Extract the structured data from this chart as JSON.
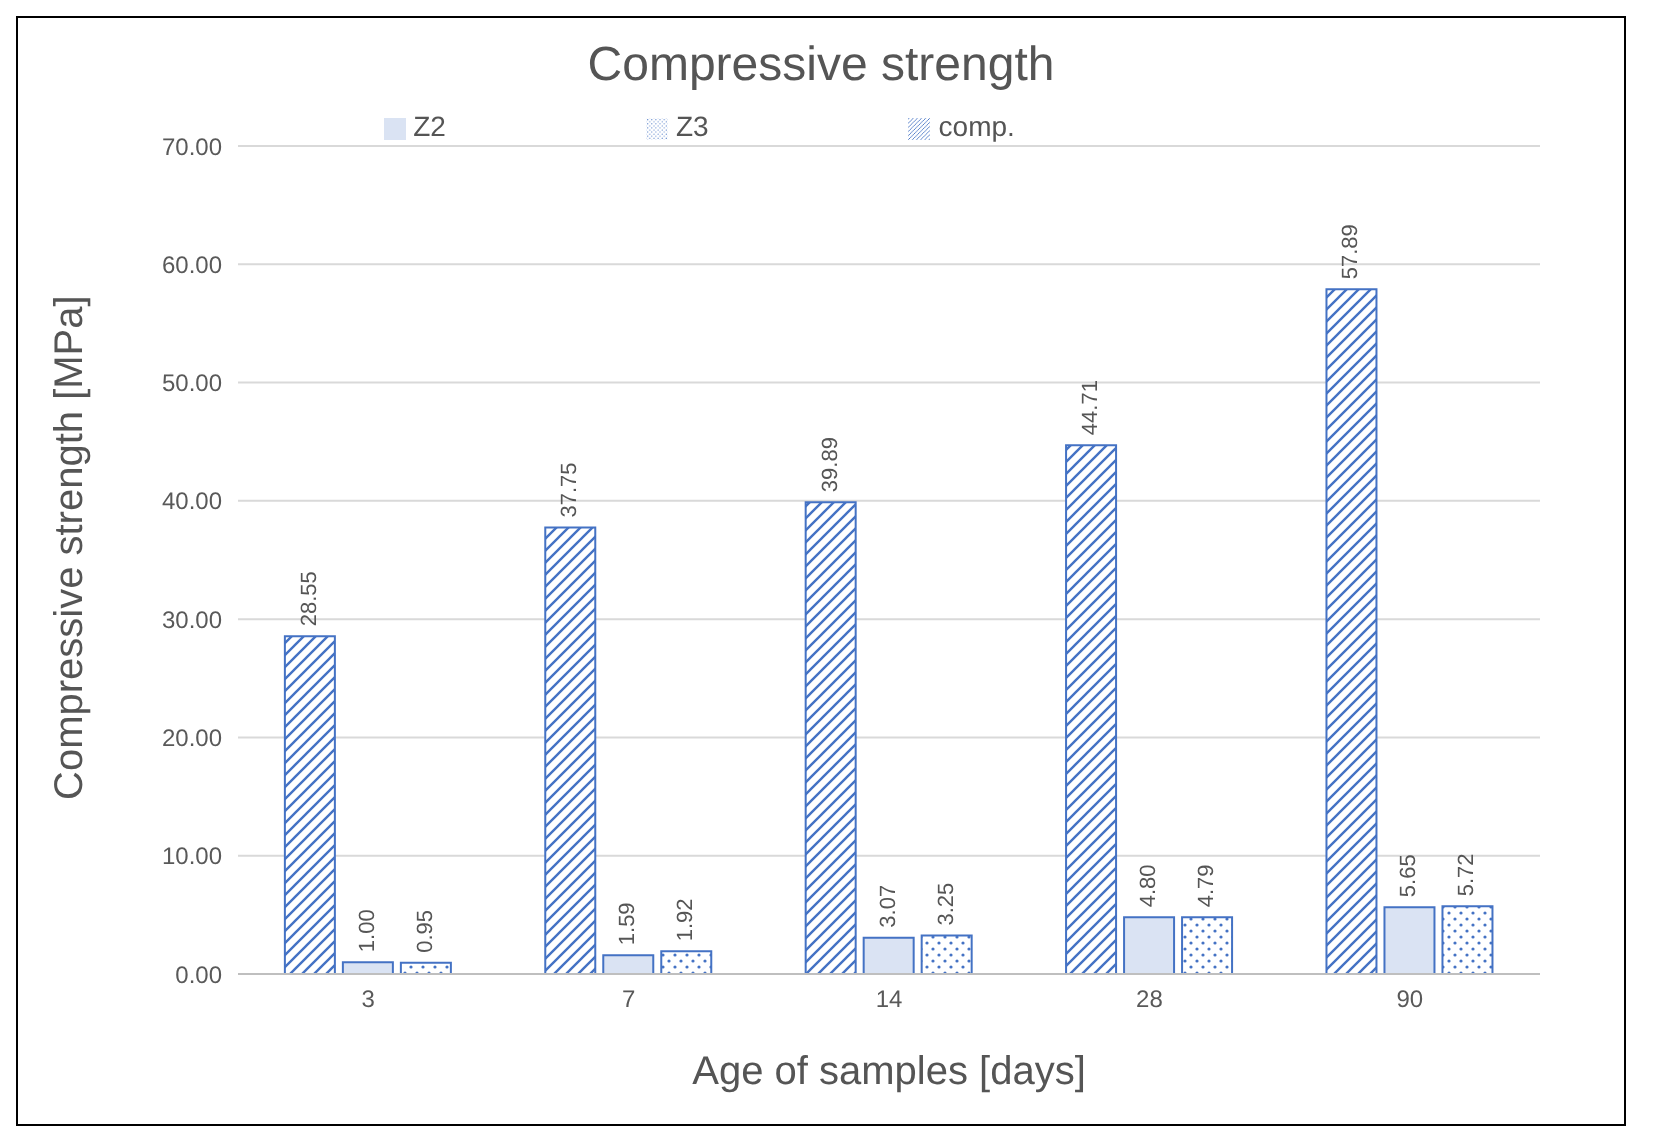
{
  "chart_data": {
    "type": "bar",
    "title": "Compressive strength",
    "xlabel": "Age of samples [days]",
    "ylabel": "Compressive strength [MPa]",
    "categories": [
      "3",
      "7",
      "14",
      "28",
      "90"
    ],
    "series": [
      {
        "name": "comp.",
        "color": "#4472c4",
        "values": [
          28.55,
          37.75,
          39.89,
          44.71,
          57.89
        ],
        "value_labels": [
          "28.55",
          "37.75",
          "39.89",
          "44.71",
          "57.89"
        ]
      },
      {
        "name": "Z2",
        "color": "#4472c4",
        "values": [
          1.0,
          1.59,
          3.07,
          4.8,
          5.65
        ],
        "value_labels": [
          "1.00",
          "1.59",
          "3.07",
          "4.80",
          "5.65"
        ]
      },
      {
        "name": "Z3",
        "color": "#4472c4",
        "values": [
          0.95,
          1.92,
          3.25,
          4.79,
          5.72
        ],
        "value_labels": [
          "0.95",
          "1.92",
          "3.25",
          "4.79",
          "5.72"
        ]
      }
    ],
    "ylim": [
      0,
      70
    ],
    "yticks": [
      {
        "value": 0,
        "label": "0.00"
      },
      {
        "value": 10,
        "label": "10.00"
      },
      {
        "value": 20,
        "label": "20.00"
      },
      {
        "value": 30,
        "label": "30.00"
      },
      {
        "value": 40,
        "label": "40.00"
      },
      {
        "value": 50,
        "label": "50.00"
      },
      {
        "value": 60,
        "label": "60.00"
      },
      {
        "value": 70,
        "label": "70.00"
      }
    ],
    "grid": "y",
    "legend": "top"
  }
}
